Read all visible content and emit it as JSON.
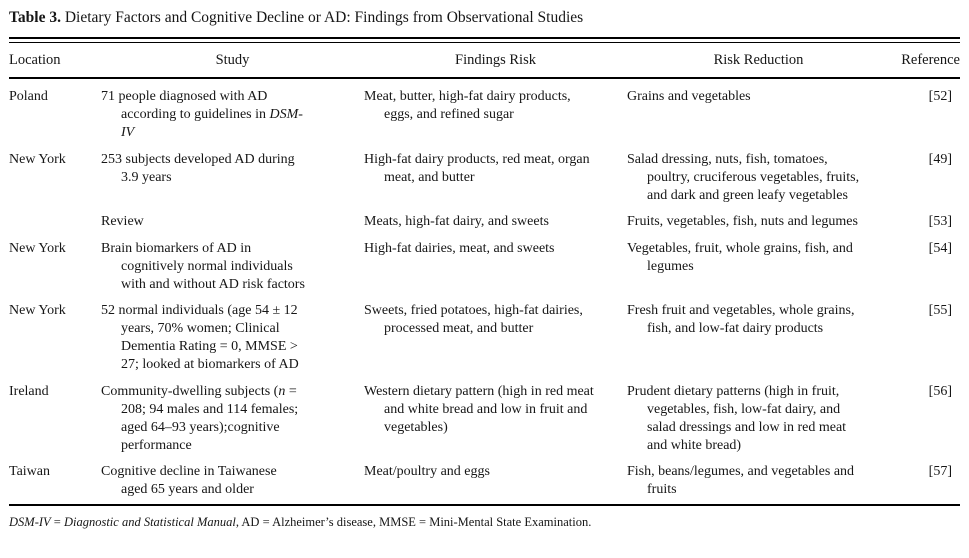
{
  "title": {
    "label": "Table 3.",
    "text": " Dietary Factors and Cognitive Decline or AD: Findings from Observational Studies"
  },
  "table": {
    "columns": [
      "Location",
      "Study",
      "Findings Risk",
      "Risk Reduction",
      "Reference"
    ],
    "rows": [
      {
        "location": "Poland",
        "study": [
          {
            "text": "71 people diagnosed with AD according to guidelines in "
          },
          {
            "text": "DSM-IV",
            "italic": true
          }
        ],
        "findings_risk": [
          {
            "text": "Meat, butter, high-fat dairy products, eggs, and refined sugar"
          }
        ],
        "risk_reduction": [
          {
            "text": "Grains and vegetables"
          }
        ],
        "reference": "[52]"
      },
      {
        "location": "New York",
        "study": [
          {
            "text": "253 subjects developed AD during 3.9 years"
          }
        ],
        "findings_risk": [
          {
            "text": "High-fat dairy products, red meat, organ meat, and butter"
          }
        ],
        "risk_reduction": [
          {
            "text": "Salad dressing, nuts, fish, tomatoes, poultry, cruciferous vegetables, fruits, and dark and green leafy vegetables"
          }
        ],
        "reference": "[49]"
      },
      {
        "location": "",
        "study": [
          {
            "text": "Review"
          }
        ],
        "findings_risk": [
          {
            "text": "Meats, high-fat dairy, and sweets"
          }
        ],
        "risk_reduction": [
          {
            "text": "Fruits, vegetables, fish, nuts and legumes"
          }
        ],
        "reference": "[53]"
      },
      {
        "location": "New York",
        "study": [
          {
            "text": "Brain biomarkers of AD in cognitively normal individuals with and without AD risk factors"
          }
        ],
        "findings_risk": [
          {
            "text": "High-fat dairies, meat, and sweets"
          }
        ],
        "risk_reduction": [
          {
            "text": "Vegetables, fruit, whole grains, fish, and legumes"
          }
        ],
        "reference": "[54]"
      },
      {
        "location": "New York",
        "study": [
          {
            "text": "52 normal individuals (age 54 ± 12 years, 70% women; Clinical Dementia Rating = 0, MMSE > 27; looked at biomarkers of AD"
          }
        ],
        "findings_risk": [
          {
            "text": "Sweets, fried potatoes, high-fat dairies, processed meat, and butter"
          }
        ],
        "risk_reduction": [
          {
            "text": "Fresh fruit and vegetables, whole grains, fish, and low-fat dairy products"
          }
        ],
        "reference": "[55]"
      },
      {
        "location": "Ireland",
        "study": [
          {
            "text": "Community-dwelling subjects ("
          },
          {
            "text": "n",
            "italic": true
          },
          {
            "text": " = 208; 94 males and 114 females; aged 64–93 years);cognitive performance"
          }
        ],
        "findings_risk": [
          {
            "text": "Western dietary pattern (high in red meat and white bread and low in fruit and vegetables)"
          }
        ],
        "risk_reduction": [
          {
            "text": "Prudent dietary patterns (high in fruit, vegetables, fish, low-fat dairy, and salad dressings and low in red meat and white bread)"
          }
        ],
        "reference": "[56]"
      },
      {
        "location": "Taiwan",
        "study": [
          {
            "text": "Cognitive decline in Taiwanese aged 65 years and older"
          }
        ],
        "findings_risk": [
          {
            "text": "Meat/poultry and eggs"
          }
        ],
        "risk_reduction": [
          {
            "text": "Fish, beans/legumes, and vegetables and fruits"
          }
        ],
        "reference": "[57]"
      }
    ]
  },
  "footnote": [
    {
      "text": "DSM-IV",
      "italic": true
    },
    {
      "text": " = "
    },
    {
      "text": "Diagnostic and Statistical Manual",
      "italic": true
    },
    {
      "text": ", AD = Alzheimer’s disease, MMSE = Mini-Mental State Examination."
    }
  ]
}
